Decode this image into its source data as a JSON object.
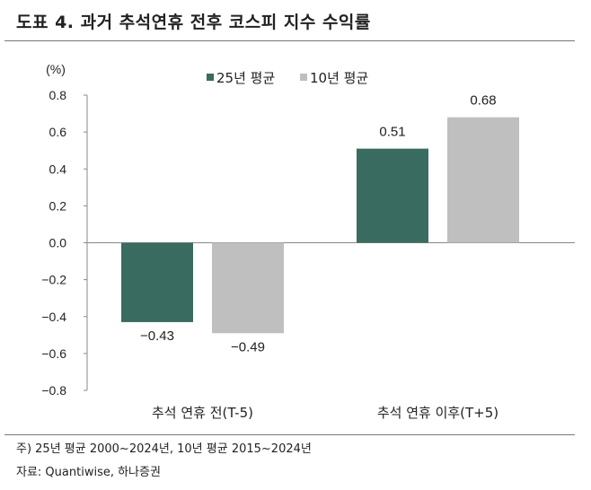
{
  "title": "도표 4. 과거 추석연휴 전후 코스피 지수 수익률",
  "chart_data": {
    "type": "bar",
    "unit_label": "(%)",
    "categories": [
      "추석 연휴 전(T-5)",
      "추석 연휴 이후(T+5)"
    ],
    "series": [
      {
        "name": "25년 평균",
        "color": "#3a6b61",
        "values": [
          -0.43,
          0.51
        ],
        "labels": [
          "-0.43",
          "0.51"
        ]
      },
      {
        "name": "10년 평균",
        "color": "#bfbfbf",
        "values": [
          -0.49,
          0.68
        ],
        "labels": [
          "-0.49",
          "0.68"
        ]
      }
    ],
    "ylim": [
      -0.8,
      0.8
    ],
    "yticks": [
      "0.8",
      "0.6",
      "0.4",
      "0.2",
      "0.0",
      "-0.2",
      "-0.4",
      "-0.6",
      "-0.8"
    ],
    "legend": "top-center"
  },
  "notes": {
    "note": "주) 25년 평균 2000~2024년, 10년 평균 2015~2024년",
    "source": "자료: Quantiwise, 하나증권"
  }
}
